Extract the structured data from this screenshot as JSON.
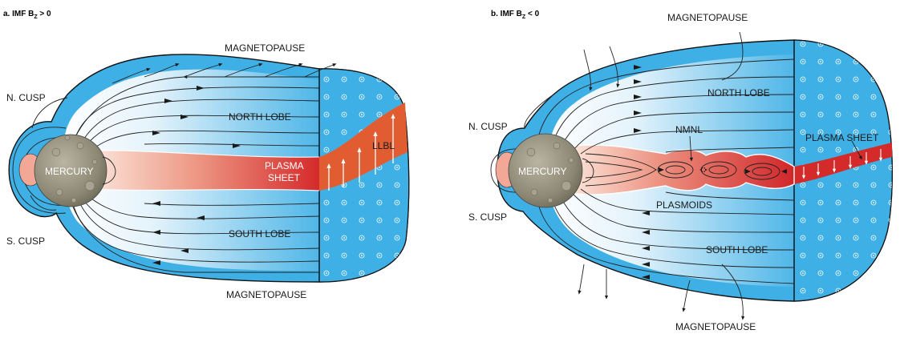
{
  "panel_a": {
    "title_prefix": "a. IMF B",
    "title_sub": "Z",
    "title_suffix": " > 0",
    "labels": {
      "magnetopause_top": "MAGNETOPAUSE",
      "magnetopause_bottom": "MAGNETOPAUSE",
      "north_cusp": "N. CUSP",
      "south_cusp": "S. CUSP",
      "north_lobe": "NORTH LOBE",
      "south_lobe": "SOUTH LOBE",
      "planet": "MERCURY",
      "plasma_sheet_line1": "PLASMA",
      "plasma_sheet_line2": "SHEET",
      "llbl": "LLBL"
    }
  },
  "panel_b": {
    "title_prefix": "b. IMF B",
    "title_sub": "Z",
    "title_suffix": " < 0",
    "labels": {
      "magnetopause_top": "MAGNETOPAUSE",
      "magnetopause_bottom": "MAGNETOPAUSE",
      "north_cusp": "N. CUSP",
      "south_cusp": "S. CUSP",
      "north_lobe": "NORTH LOBE",
      "south_lobe": "SOUTH LOBE",
      "planet": "MERCURY",
      "nmnl": "NMNL",
      "plasma_sheet": "PLASMA SHEET",
      "plasmoids": "PLASMOIDS"
    }
  },
  "colors": {
    "magnetosheath_blue": "#3fb0e6",
    "lobe_light": "#e6f4fb",
    "plasma_red": "#d8282c",
    "plasma_pink": "#f4c6b3",
    "llbl_orange": "#f39a3c",
    "planet_gray": "#8f8b78"
  }
}
